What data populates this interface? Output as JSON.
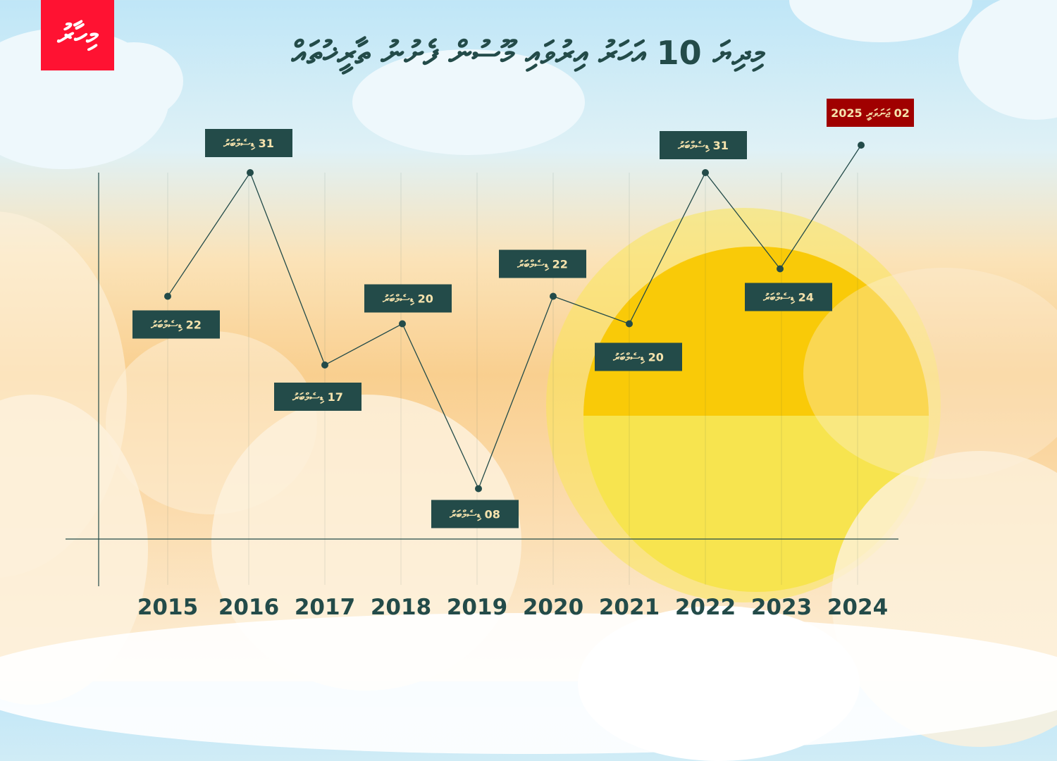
{
  "logo": {
    "text": "މިހާރު"
  },
  "colors": {
    "line": "#234b49",
    "box": "#234b49",
    "box_text": "#f6e3ad",
    "highlight_box": "#a00000",
    "logo": "#ff1232"
  },
  "chart_data": {
    "type": "line",
    "title": "މިދިޔަ 10 އަހަރު އިރުވައި މޫސުން ފެށުނު ތާރީޚުތައް",
    "xlabel": "",
    "ylabel": "",
    "categories": [
      "2015",
      "2016",
      "2017",
      "2018",
      "2019",
      "2020",
      "2021",
      "2022",
      "2023",
      "2024"
    ],
    "points": [
      {
        "year": "2015",
        "label": "22 ޑިސެމްބަރު",
        "day": 22
      },
      {
        "year": "2016",
        "label": "31 ޑިސެމްބަރު",
        "day": 31
      },
      {
        "year": "2017",
        "label": "17 ޑިސެމްބަރު",
        "day": 17
      },
      {
        "year": "2018",
        "label": "20 ޑިސެމްބަރު",
        "day": 20
      },
      {
        "year": "2019",
        "label": "08 ޑިސެމްބަރު",
        "day": 8
      },
      {
        "year": "2020",
        "label": "22 ޑިސެމްބަރު",
        "day": 22
      },
      {
        "year": "2021",
        "label": "20 ޑިސެމްބަރު",
        "day": 20
      },
      {
        "year": "2022",
        "label": "31 ޑިސެމްބަރު",
        "day": 31
      },
      {
        "year": "2023",
        "label": "24 ޑިސެމްބަރު",
        "day": 24
      },
      {
        "year": "2024",
        "label": "02 ޖަނަވަރީ 2025",
        "day": 33,
        "highlight": true
      }
    ],
    "y_units": "days from 1 December",
    "grid": true,
    "legend": "none"
  }
}
